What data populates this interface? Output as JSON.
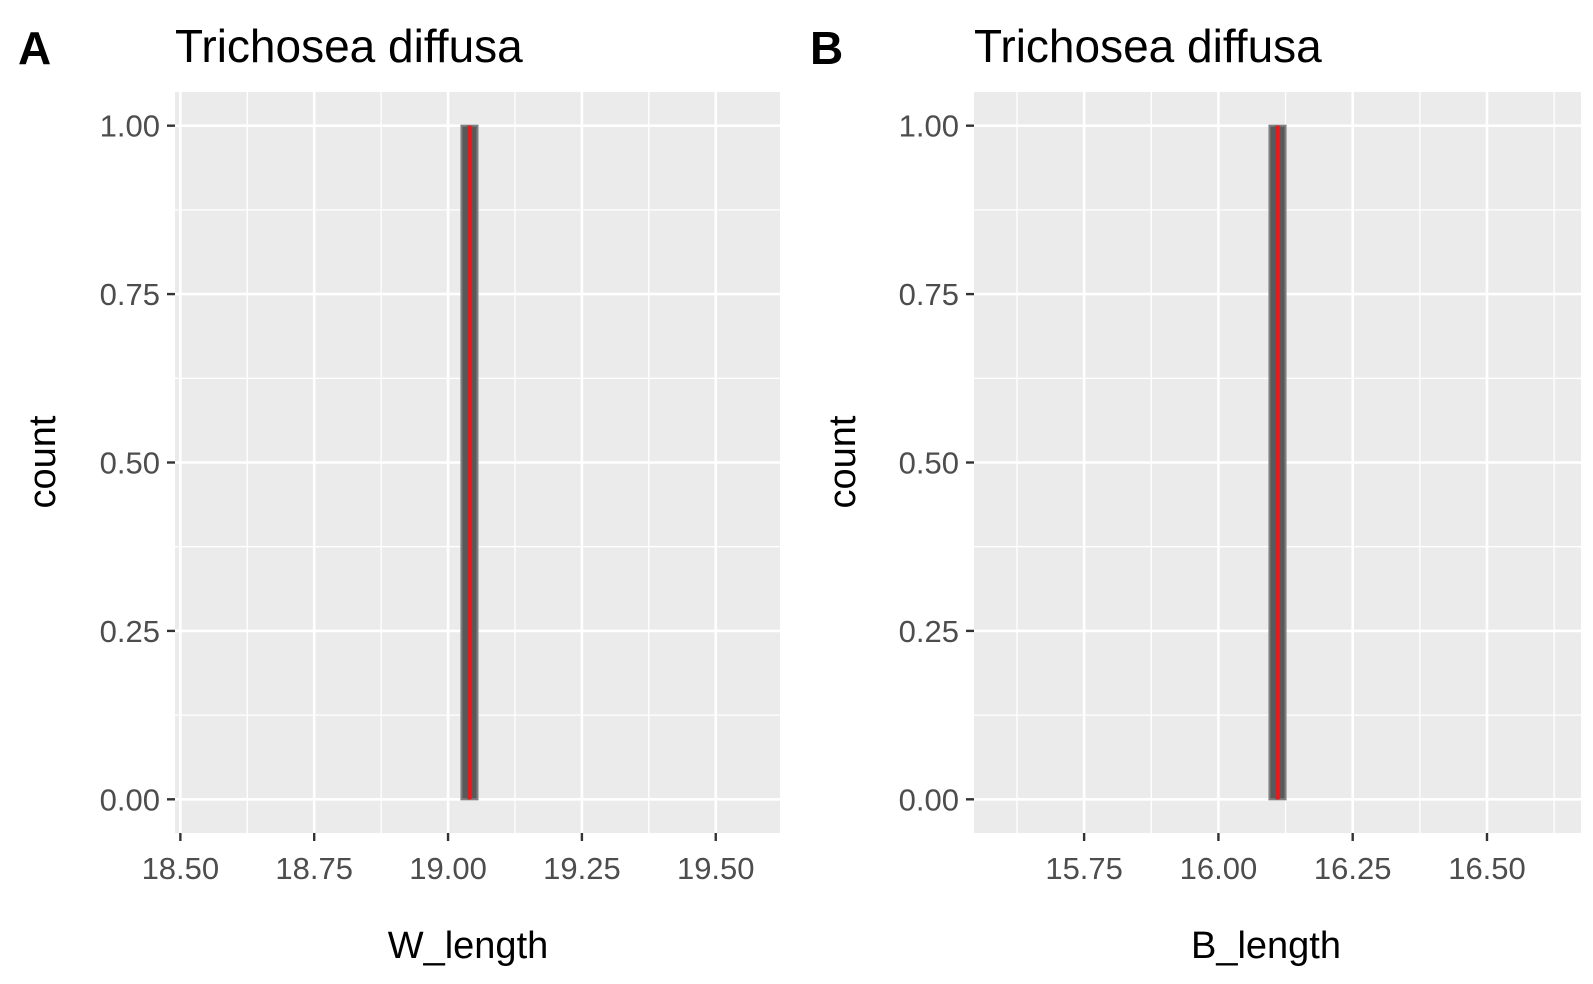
{
  "chart_data": [
    {
      "type": "bar",
      "panel": "A",
      "title": "Trichosea diffusa",
      "xlabel": "W_length",
      "ylabel": "count",
      "xlim": [
        18.49,
        19.62
      ],
      "ylim": [
        -0.05,
        1.05
      ],
      "xticks": [
        "18.50",
        "18.75",
        "19.00",
        "19.25",
        "19.50"
      ],
      "yticks": [
        "0.00",
        "0.25",
        "0.50",
        "0.75",
        "1.00"
      ],
      "bars": [
        {
          "xmin": 19.025,
          "xmax": 19.055,
          "count": 1
        }
      ],
      "mean_line": 19.04,
      "colors": {
        "panel_bg": "#EBEBEB",
        "grid": "#FFFFFF",
        "bar_fill": "#595959",
        "bar_edge": "#808080",
        "mean_line": "#E41A1C"
      }
    },
    {
      "type": "bar",
      "panel": "B",
      "title": "Trichosea diffusa",
      "xlabel": "B_length",
      "ylabel": "count",
      "xlim": [
        15.545,
        16.675
      ],
      "ylim": [
        -0.05,
        1.05
      ],
      "xticks": [
        "15.75",
        "16.00",
        "16.25",
        "16.50"
      ],
      "yticks": [
        "0.00",
        "0.25",
        "0.50",
        "0.75",
        "1.00"
      ],
      "bars": [
        {
          "xmin": 16.095,
          "xmax": 16.125,
          "count": 1
        }
      ],
      "mean_line": 16.11,
      "colors": {
        "panel_bg": "#EBEBEB",
        "grid": "#FFFFFF",
        "bar_fill": "#595959",
        "bar_edge": "#808080",
        "mean_line": "#E41A1C"
      }
    }
  ]
}
